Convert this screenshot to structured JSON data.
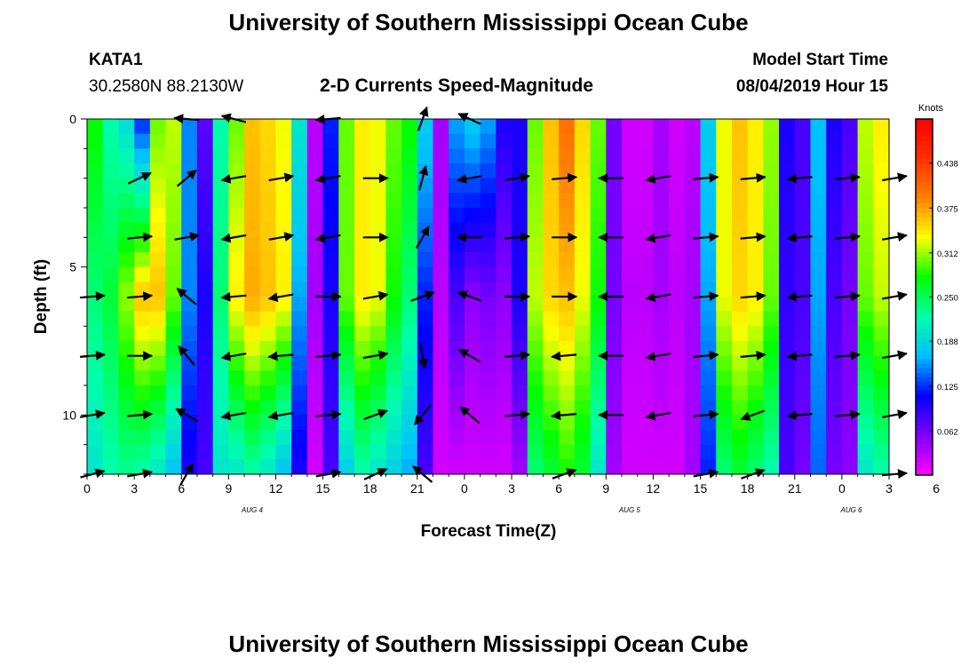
{
  "header": {
    "title_top": "University of Southern Mississippi Ocean Cube",
    "title_bottom": "University of Southern Mississippi Ocean Cube",
    "station": "KATA1",
    "coords": "30.2580N 88.2130W",
    "plot_title": "2-D Currents Speed-Magnitude",
    "model_label": "Model Start Time",
    "model_time": "08/04/2019 Hour 15"
  },
  "chart_data": {
    "type": "heatmap",
    "title": "2-D Currents Speed-Magnitude",
    "xlabel": "Forecast Time(Z)",
    "ylabel": "Depth (ft)",
    "x_hours": [
      0,
      51
    ],
    "x_tick_labels": [
      "0",
      "3",
      "6",
      "9",
      "12",
      "15",
      "18",
      "21",
      "0",
      "3",
      "6",
      "9",
      "12",
      "15",
      "18",
      "21",
      "0",
      "3",
      "6"
    ],
    "date_labels": [
      {
        "hour": 10.5,
        "label": "AUG 4"
      },
      {
        "hour": 34.5,
        "label": "AUG 5"
      },
      {
        "hour": 48.6,
        "label": "AUG 6"
      }
    ],
    "y_ticks": [
      0,
      5,
      10
    ],
    "ylim": [
      0,
      12
    ],
    "colorbar": {
      "unit": "Knots",
      "tick_labels": [
        "0.438",
        "0.375",
        "0.312",
        "0.250",
        "0.188",
        "0.125",
        "0.062"
      ],
      "tick_values": [
        0.438,
        0.375,
        0.312,
        0.25,
        0.188,
        0.125,
        0.062
      ],
      "range": [
        0.0,
        0.5
      ],
      "colors": [
        "#ff00ff",
        "#8000ff",
        "#0000ff",
        "#00bfff",
        "#00ffaa",
        "#00ff00",
        "#ffff00",
        "#ff8000",
        "#ff3000",
        "#ff0000"
      ]
    },
    "speed_by_hour_surface": [
      0.28,
      0.22,
      0.19,
      0.12,
      0.3,
      0.32,
      0.15,
      0.07,
      0.22,
      0.3,
      0.36,
      0.35,
      0.33,
      0.2,
      0.03,
      0.12,
      0.3,
      0.34,
      0.33,
      0.3,
      0.28,
      0.18,
      0.04,
      0.16,
      0.18,
      0.16,
      0.1,
      0.1,
      0.3,
      0.36,
      0.4,
      0.35,
      0.3,
      0.06,
      0.02,
      0.02,
      0.04,
      0.02,
      0.03,
      0.18,
      0.33,
      0.36,
      0.34,
      0.31,
      0.1,
      0.08,
      0.17,
      0.1,
      0.08,
      0.32,
      0.34
    ],
    "speed_by_hour_mid": [
      0.24,
      0.26,
      0.31,
      0.36,
      0.36,
      0.3,
      0.15,
      0.1,
      0.24,
      0.34,
      0.37,
      0.36,
      0.34,
      0.16,
      0.04,
      0.1,
      0.3,
      0.34,
      0.33,
      0.28,
      0.24,
      0.12,
      0.03,
      0.08,
      0.05,
      0.06,
      0.05,
      0.1,
      0.32,
      0.35,
      0.36,
      0.33,
      0.28,
      0.06,
      0.03,
      0.03,
      0.04,
      0.03,
      0.04,
      0.16,
      0.33,
      0.35,
      0.34,
      0.3,
      0.09,
      0.08,
      0.16,
      0.08,
      0.06,
      0.3,
      0.32
    ],
    "speed_by_hour_bottom": [
      0.2,
      0.22,
      0.23,
      0.22,
      0.2,
      0.17,
      0.1,
      0.08,
      0.2,
      0.2,
      0.22,
      0.2,
      0.17,
      0.1,
      0.02,
      0.08,
      0.18,
      0.22,
      0.2,
      0.18,
      0.16,
      0.08,
      0.02,
      0.02,
      0.02,
      0.02,
      0.02,
      0.04,
      0.24,
      0.26,
      0.28,
      0.26,
      0.2,
      0.04,
      0.02,
      0.02,
      0.02,
      0.02,
      0.04,
      0.12,
      0.24,
      0.26,
      0.24,
      0.22,
      0.08,
      0.06,
      0.14,
      0.06,
      0.05,
      0.2,
      0.22
    ],
    "vector_hours": [
      0,
      3,
      6,
      9,
      12,
      15,
      18,
      21,
      24,
      27,
      30,
      33,
      36,
      39,
      42,
      45,
      48,
      51
    ],
    "vector_depths": [
      0,
      2,
      4,
      6,
      8,
      10,
      12
    ],
    "vector_angles_deg": [
      [
        null,
        null,
        175,
        165,
        null,
        185,
        null,
        70,
        155,
        null,
        null,
        null,
        null,
        null,
        null,
        null,
        null,
        null
      ],
      [
        null,
        25,
        40,
        190,
        10,
        190,
        0,
        75,
        190,
        10,
        5,
        180,
        190,
        5,
        5,
        185,
        5,
        10
      ],
      [
        null,
        5,
        10,
        190,
        10,
        190,
        0,
        60,
        180,
        5,
        0,
        180,
        190,
        5,
        5,
        185,
        5,
        10
      ],
      [
        5,
        5,
        140,
        185,
        190,
        0,
        10,
        20,
        160,
        0,
        0,
        180,
        190,
        5,
        5,
        185,
        5,
        10
      ],
      [
        5,
        0,
        130,
        190,
        185,
        5,
        10,
        280,
        150,
        5,
        185,
        180,
        190,
        5,
        5,
        185,
        5,
        10
      ],
      [
        10,
        5,
        150,
        190,
        190,
        5,
        20,
        230,
        140,
        5,
        185,
        180,
        190,
        5,
        200,
        185,
        5,
        10
      ],
      [
        15,
        10,
        60,
        null,
        null,
        10,
        25,
        140,
        null,
        null,
        20,
        null,
        null,
        10,
        20,
        null,
        null,
        5
      ]
    ]
  }
}
